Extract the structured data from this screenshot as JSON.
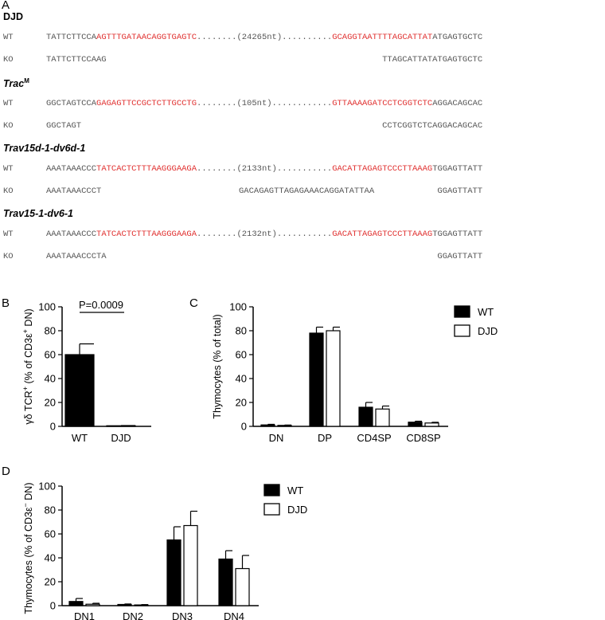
{
  "panelA": {
    "letter": "A",
    "blocks": [
      {
        "title_main": "DJD",
        "title_sup": "",
        "italic": false,
        "wt_label": "WT",
        "wt": {
          "prefix": "TATTCTTCCA",
          "red1": "AGTTTGATAACAGGTGAGTC",
          "gap": "........(24265nt)..........",
          "red2": "GCAGGTAATTTTAGCATTAT",
          "suffix": "ATGAGTGCTC"
        },
        "ko_label": "KO",
        "ko": {
          "left": "TATTCTTCCAAG",
          "insert": "",
          "right": "TTAGCATTATATGAGTGCTC"
        }
      },
      {
        "title_main": "Trac",
        "title_sup": "M",
        "italic": true,
        "wt_label": "WT",
        "wt": {
          "prefix": "GGCTAGTCCA",
          "red1": "GAGAGTTCCGCTCTTGCCTG",
          "gap": "........(105nt)............",
          "red2": "GTTAAAAGATCCTCGGTCTC",
          "suffix": "AGGACAGCAC"
        },
        "ko_label": "KO",
        "ko": {
          "left": "GGCTAGT",
          "insert": "",
          "right": "CCTCGGTCTCAGGACAGCAC"
        }
      },
      {
        "title_main": "Trav15d-1-dv6d-1",
        "title_sup": "",
        "italic": true,
        "wt_label": "WT",
        "wt": {
          "prefix": "AAATAAACCC",
          "red1": "TATCACTCTTTAAGGGAAGA",
          "gap": "........(2133nt)...........",
          "red2": "GACATTAGAGTCCCTTAAAG",
          "suffix": "TGGAGTTATT"
        },
        "ko_label": "KO",
        "ko": {
          "left": "AAATAAACCCT",
          "insert": "GACAGAGTTAGAGAAACAGGATATTAA",
          "right": "GGAGTTATT"
        }
      },
      {
        "title_main": "Trav15-1-dv6-1",
        "title_sup": "",
        "italic": true,
        "wt_label": "WT",
        "wt": {
          "prefix": "AAATAAACCC",
          "red1": "TATCACTCTTTAAGGGAAGA",
          "gap": "........(2132nt)...........",
          "red2": "GACATTAGAGTCCCTTAAAG",
          "suffix": "TGGAGTTATT"
        },
        "ko_label": "KO",
        "ko": {
          "left": "AAATAAACCCTA",
          "insert": "",
          "right": "GGAGTTATT"
        }
      }
    ]
  },
  "chart_data": [
    {
      "panel": "B",
      "type": "bar",
      "categories": [
        "WT",
        "DJD"
      ],
      "values": [
        60,
        0.5
      ],
      "errors": [
        9,
        0.2
      ],
      "colors": [
        "#000000",
        "#ffffff"
      ],
      "ylabel_pre": "γδ TCR",
      "ylabel_sup1": "+",
      "ylabel_mid": " (% of CD3ε",
      "ylabel_sup2": "+",
      "ylabel_post": " DN)",
      "ylim": [
        0,
        100
      ],
      "yticks": [
        0,
        20,
        40,
        60,
        80,
        100
      ],
      "annotation": "P=0.0009"
    },
    {
      "panel": "C",
      "type": "bar",
      "categories": [
        "DN",
        "DP",
        "CD4SP",
        "CD8SP"
      ],
      "series": [
        {
          "name": "WT",
          "values": [
            1.2,
            78,
            16,
            3.5
          ],
          "errors": [
            0.5,
            5,
            4,
            0.8
          ],
          "color": "#000000"
        },
        {
          "name": "DJD",
          "values": [
            0.8,
            80,
            14.5,
            2.8
          ],
          "errors": [
            0.3,
            3,
            2.5,
            0.6
          ],
          "color": "#ffffff"
        }
      ],
      "ylabel": "Thymocytes (% of total)",
      "ylim": [
        0,
        100
      ],
      "yticks": [
        0,
        20,
        40,
        60,
        80,
        100
      ],
      "legend_placement": "top-right"
    },
    {
      "panel": "D",
      "type": "bar",
      "categories": [
        "DN1",
        "DN2",
        "DN3",
        "DN4"
      ],
      "series": [
        {
          "name": "WT",
          "values": [
            3.5,
            1,
            55,
            39
          ],
          "errors": [
            2.5,
            0.4,
            11,
            7
          ],
          "color": "#000000"
        },
        {
          "name": "DJD",
          "values": [
            1.2,
            0.6,
            67,
            31
          ],
          "errors": [
            0.8,
            0.3,
            12,
            11
          ],
          "color": "#ffffff"
        }
      ],
      "ylabel_pre": "Thymocytes (% of CD3ε",
      "ylabel_sup": "−",
      "ylabel_post": " DN)",
      "ylim": [
        0,
        100
      ],
      "yticks": [
        0,
        20,
        40,
        60,
        80,
        100
      ],
      "legend_placement": "top-right"
    }
  ],
  "panel_letters": {
    "B": "B",
    "C": "C",
    "D": "D"
  }
}
